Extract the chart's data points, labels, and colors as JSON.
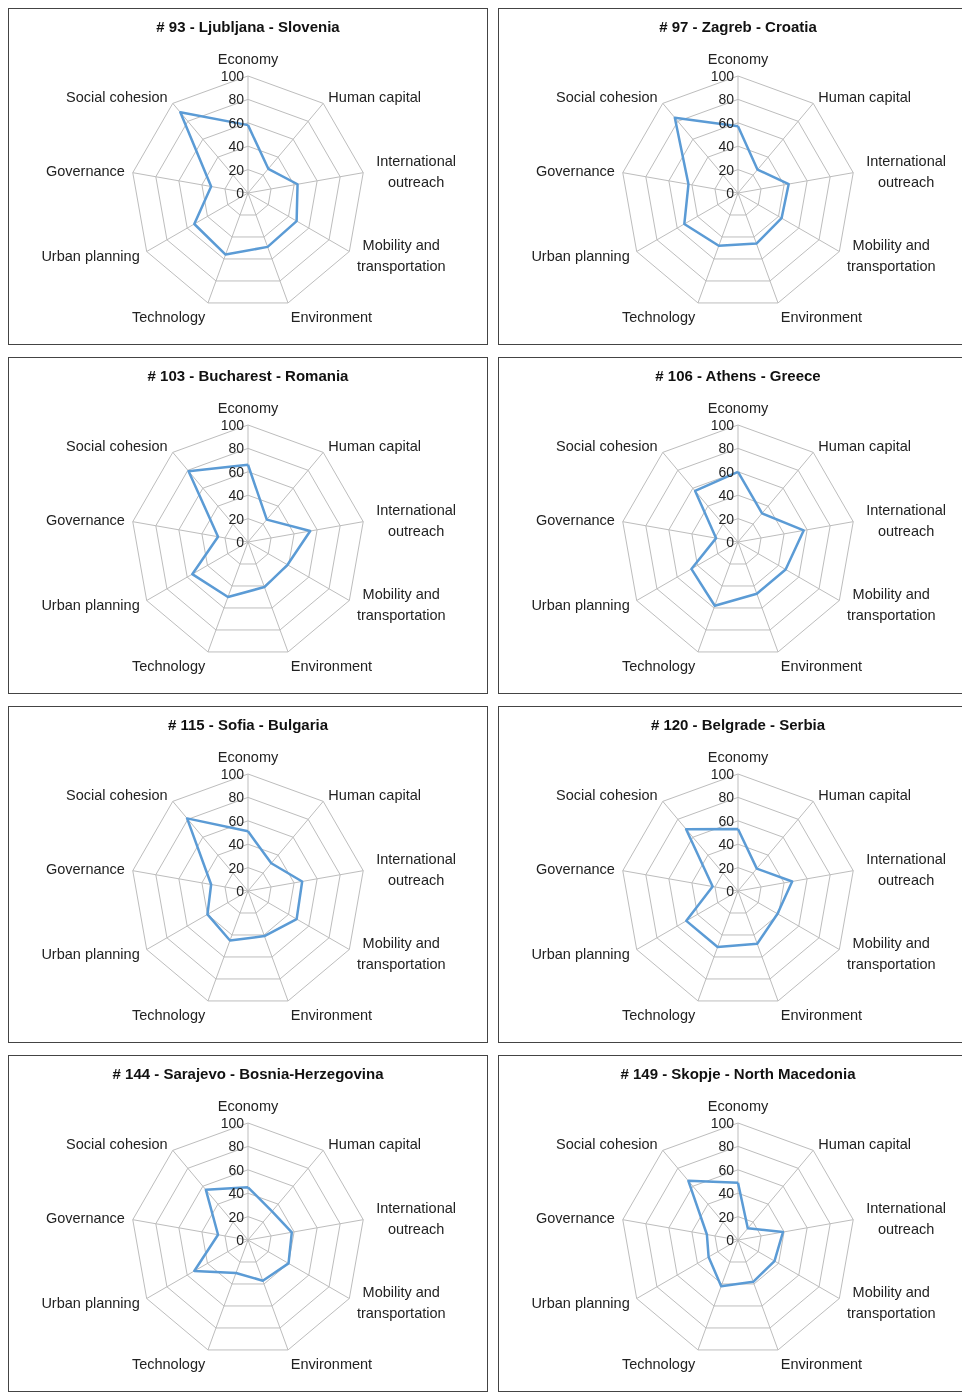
{
  "chart_data": [
    {
      "type": "radar",
      "title": "# 93 - Ljubljana - Slovenia",
      "categories": [
        "Economy",
        "Human capital",
        "International outreach",
        "Mobility and transportation",
        "Environment",
        "Technology",
        "Urban planning",
        "Governance",
        "Social cohesion"
      ],
      "ylim": [
        0,
        100
      ],
      "yticks": [
        0,
        20,
        40,
        60,
        80,
        100
      ],
      "grid": true,
      "marker": "none",
      "series": [
        {
          "color": "#5b9bd5",
          "values": [
            58,
            27,
            43,
            48,
            49,
            56,
            53,
            32,
            90
          ]
        }
      ]
    },
    {
      "type": "radar",
      "title": "# 97 - Zagreb - Croatia",
      "categories": [
        "Economy",
        "Human capital",
        "International outreach",
        "Mobility and transportation",
        "Environment",
        "Technology",
        "Urban planning",
        "Governance",
        "Social cohesion"
      ],
      "ylim": [
        0,
        100
      ],
      "yticks": [
        0,
        20,
        40,
        60,
        80,
        100
      ],
      "grid": true,
      "marker": "none",
      "series": [
        {
          "color": "#5b9bd5",
          "values": [
            57,
            26,
            44,
            43,
            46,
            48,
            53,
            43,
            84
          ]
        }
      ]
    },
    {
      "type": "radar",
      "title": "# 103 - Bucharest - Romania",
      "categories": [
        "Economy",
        "Human capital",
        "International outreach",
        "Mobility and transportation",
        "Environment",
        "Technology",
        "Urban planning",
        "Governance",
        "Social cohesion"
      ],
      "ylim": [
        0,
        100
      ],
      "yticks": [
        0,
        20,
        40,
        60,
        80,
        100
      ],
      "grid": true,
      "marker": "none",
      "series": [
        {
          "color": "#5b9bd5",
          "values": [
            66,
            25,
            54,
            39,
            41,
            50,
            55,
            26,
            79
          ]
        }
      ]
    },
    {
      "type": "radar",
      "title": "# 106 - Athens - Greece",
      "categories": [
        "Economy",
        "Human capital",
        "International outreach",
        "Mobility and transportation",
        "Environment",
        "Technology",
        "Urban planning",
        "Governance",
        "Social cohesion"
      ],
      "ylim": [
        0,
        100
      ],
      "yticks": [
        0,
        20,
        40,
        60,
        80,
        100
      ],
      "grid": true,
      "marker": "none",
      "series": [
        {
          "color": "#5b9bd5",
          "values": [
            60,
            32,
            57,
            47,
            47,
            58,
            46,
            19,
            57
          ]
        }
      ]
    },
    {
      "type": "radar",
      "title": "# 115 - Sofia - Bulgaria",
      "categories": [
        "Economy",
        "Human capital",
        "International outreach",
        "Mobility and transportation",
        "Environment",
        "Technology",
        "Urban planning",
        "Governance",
        "Social cohesion"
      ],
      "ylim": [
        0,
        100
      ],
      "yticks": [
        0,
        20,
        40,
        60,
        80,
        100
      ],
      "grid": true,
      "marker": "none",
      "series": [
        {
          "color": "#5b9bd5",
          "values": [
            51,
            31,
            47,
            48,
            41,
            45,
            40,
            32,
            81
          ]
        }
      ]
    },
    {
      "type": "radar",
      "title": "# 120 - Belgrade - Serbia",
      "categories": [
        "Economy",
        "Human capital",
        "International outreach",
        "Mobility and transportation",
        "Environment",
        "Technology",
        "Urban planning",
        "Governance",
        "Social cohesion"
      ],
      "ylim": [
        0,
        100
      ],
      "yticks": [
        0,
        20,
        40,
        60,
        80,
        100
      ],
      "grid": true,
      "marker": "none",
      "series": [
        {
          "color": "#5b9bd5",
          "values": [
            53,
            25,
            47,
            39,
            48,
            51,
            51,
            22,
            69
          ]
        }
      ]
    },
    {
      "type": "radar",
      "title": "# 144 - Sarajevo - Bosnia-Herzegovina",
      "categories": [
        "Economy",
        "Human capital",
        "International outreach",
        "Mobility and transportation",
        "Environment",
        "Technology",
        "Urban planning",
        "Governance",
        "Social cohesion"
      ],
      "ylim": [
        0,
        100
      ],
      "yticks": [
        0,
        20,
        40,
        60,
        80,
        100
      ],
      "grid": true,
      "marker": "none",
      "series": [
        {
          "color": "#5b9bd5",
          "values": [
            45,
            32,
            38,
            40,
            37,
            30,
            53,
            26,
            56
          ]
        }
      ]
    },
    {
      "type": "radar",
      "title": "# 149 - Skopje - North Macedonia",
      "categories": [
        "Economy",
        "Human capital",
        "International outreach",
        "Mobility and transportation",
        "Environment",
        "Technology",
        "Urban planning",
        "Governance",
        "Social cohesion"
      ],
      "ylim": [
        0,
        100
      ],
      "yticks": [
        0,
        20,
        40,
        60,
        80,
        100
      ],
      "grid": true,
      "marker": "none",
      "series": [
        {
          "color": "#5b9bd5",
          "values": [
            49,
            13,
            39,
            36,
            38,
            42,
            29,
            27,
            66
          ]
        }
      ]
    }
  ]
}
